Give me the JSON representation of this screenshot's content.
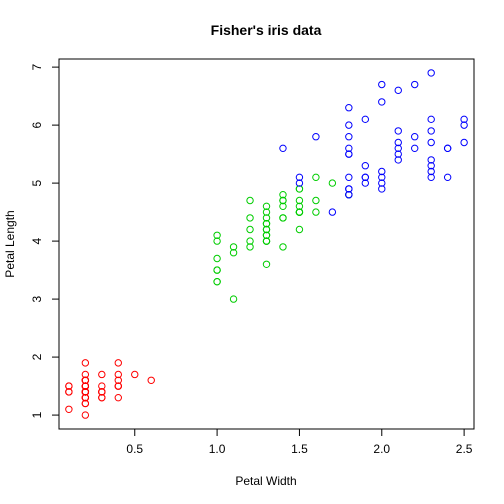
{
  "chart_data": {
    "type": "scatter",
    "title": "Fisher's iris data",
    "xlabel": "Petal Width",
    "ylabel": "Petal Length",
    "xlim": [
      0.04,
      2.56
    ],
    "ylim": [
      0.76,
      7.14
    ],
    "xticks": [
      0.5,
      1.0,
      1.5,
      2.0,
      2.5
    ],
    "xtick_labels": [
      "0.5",
      "1.0",
      "1.5",
      "2.0",
      "2.5"
    ],
    "yticks": [
      1,
      2,
      3,
      4,
      5,
      6,
      7
    ],
    "ytick_labels": [
      "1",
      "2",
      "3",
      "4",
      "5",
      "6",
      "7"
    ],
    "grid": false,
    "series": [
      {
        "color": "#ff0000",
        "points": [
          [
            0.2,
            1.4
          ],
          [
            0.2,
            1.4
          ],
          [
            0.2,
            1.3
          ],
          [
            0.2,
            1.5
          ],
          [
            0.2,
            1.4
          ],
          [
            0.4,
            1.7
          ],
          [
            0.3,
            1.4
          ],
          [
            0.2,
            1.5
          ],
          [
            0.2,
            1.4
          ],
          [
            0.1,
            1.5
          ],
          [
            0.2,
            1.5
          ],
          [
            0.2,
            1.6
          ],
          [
            0.1,
            1.4
          ],
          [
            0.1,
            1.1
          ],
          [
            0.2,
            1.2
          ],
          [
            0.4,
            1.5
          ],
          [
            0.4,
            1.3
          ],
          [
            0.3,
            1.4
          ],
          [
            0.3,
            1.7
          ],
          [
            0.3,
            1.5
          ],
          [
            0.2,
            1.7
          ],
          [
            0.4,
            1.5
          ],
          [
            0.2,
            1.0
          ],
          [
            0.5,
            1.7
          ],
          [
            0.2,
            1.9
          ],
          [
            0.2,
            1.6
          ],
          [
            0.4,
            1.6
          ],
          [
            0.2,
            1.5
          ],
          [
            0.2,
            1.4
          ],
          [
            0.2,
            1.6
          ],
          [
            0.2,
            1.6
          ],
          [
            0.4,
            1.5
          ],
          [
            0.1,
            1.5
          ],
          [
            0.2,
            1.4
          ],
          [
            0.2,
            1.5
          ],
          [
            0.2,
            1.2
          ],
          [
            0.2,
            1.3
          ],
          [
            0.1,
            1.4
          ],
          [
            0.2,
            1.3
          ],
          [
            0.2,
            1.5
          ],
          [
            0.3,
            1.3
          ],
          [
            0.3,
            1.3
          ],
          [
            0.2,
            1.3
          ],
          [
            0.6,
            1.6
          ],
          [
            0.4,
            1.9
          ],
          [
            0.3,
            1.4
          ],
          [
            0.2,
            1.6
          ],
          [
            0.2,
            1.4
          ],
          [
            0.2,
            1.5
          ],
          [
            0.2,
            1.4
          ]
        ]
      },
      {
        "color": "#00cd00",
        "points": [
          [
            1.4,
            4.7
          ],
          [
            1.5,
            4.5
          ],
          [
            1.5,
            4.9
          ],
          [
            1.3,
            4.0
          ],
          [
            1.5,
            4.6
          ],
          [
            1.3,
            4.5
          ],
          [
            1.6,
            4.7
          ],
          [
            1.0,
            3.3
          ],
          [
            1.3,
            4.6
          ],
          [
            1.4,
            3.9
          ],
          [
            1.0,
            3.5
          ],
          [
            1.5,
            4.2
          ],
          [
            1.0,
            4.0
          ],
          [
            1.4,
            4.7
          ],
          [
            1.3,
            3.6
          ],
          [
            1.4,
            4.4
          ],
          [
            1.5,
            4.5
          ],
          [
            1.0,
            4.1
          ],
          [
            1.5,
            4.5
          ],
          [
            1.1,
            3.9
          ],
          [
            1.8,
            4.8
          ],
          [
            1.3,
            4.0
          ],
          [
            1.5,
            4.9
          ],
          [
            1.2,
            4.7
          ],
          [
            1.3,
            4.3
          ],
          [
            1.4,
            4.4
          ],
          [
            1.4,
            4.8
          ],
          [
            1.7,
            5.0
          ],
          [
            1.5,
            4.5
          ],
          [
            1.0,
            3.5
          ],
          [
            1.1,
            3.8
          ],
          [
            1.0,
            3.7
          ],
          [
            1.2,
            3.9
          ],
          [
            1.6,
            5.1
          ],
          [
            1.5,
            4.5
          ],
          [
            1.6,
            4.5
          ],
          [
            1.5,
            4.7
          ],
          [
            1.3,
            4.4
          ],
          [
            1.3,
            4.1
          ],
          [
            1.3,
            4.0
          ],
          [
            1.2,
            4.4
          ],
          [
            1.4,
            4.6
          ],
          [
            1.2,
            4.0
          ],
          [
            1.0,
            3.3
          ],
          [
            1.3,
            4.2
          ],
          [
            1.2,
            4.2
          ],
          [
            1.3,
            4.2
          ],
          [
            1.3,
            4.3
          ],
          [
            1.1,
            3.0
          ],
          [
            1.3,
            4.1
          ]
        ]
      },
      {
        "color": "#0000ff",
        "points": [
          [
            2.5,
            6.0
          ],
          [
            1.9,
            5.1
          ],
          [
            2.1,
            5.9
          ],
          [
            1.8,
            5.6
          ],
          [
            2.2,
            5.8
          ],
          [
            2.1,
            6.6
          ],
          [
            1.7,
            4.5
          ],
          [
            1.8,
            6.3
          ],
          [
            1.8,
            5.8
          ],
          [
            2.5,
            6.1
          ],
          [
            2.0,
            5.1
          ],
          [
            1.9,
            5.3
          ],
          [
            2.1,
            5.5
          ],
          [
            2.0,
            5.0
          ],
          [
            2.4,
            5.1
          ],
          [
            2.3,
            5.3
          ],
          [
            1.8,
            5.5
          ],
          [
            2.2,
            6.7
          ],
          [
            2.3,
            6.9
          ],
          [
            1.5,
            5.0
          ],
          [
            2.3,
            5.7
          ],
          [
            2.0,
            4.9
          ],
          [
            2.0,
            6.7
          ],
          [
            1.8,
            4.9
          ],
          [
            2.1,
            5.7
          ],
          [
            1.8,
            6.0
          ],
          [
            1.8,
            4.8
          ],
          [
            1.8,
            4.9
          ],
          [
            2.1,
            5.6
          ],
          [
            1.6,
            5.8
          ],
          [
            1.9,
            6.1
          ],
          [
            2.0,
            6.4
          ],
          [
            2.2,
            5.6
          ],
          [
            1.5,
            5.1
          ],
          [
            1.4,
            5.6
          ],
          [
            2.3,
            6.1
          ],
          [
            2.4,
            5.6
          ],
          [
            1.8,
            5.5
          ],
          [
            1.8,
            4.8
          ],
          [
            2.1,
            5.4
          ],
          [
            2.4,
            5.6
          ],
          [
            2.3,
            5.1
          ],
          [
            1.9,
            5.1
          ],
          [
            2.3,
            5.9
          ],
          [
            2.5,
            5.7
          ],
          [
            2.3,
            5.2
          ],
          [
            1.9,
            5.0
          ],
          [
            2.0,
            5.2
          ],
          [
            2.3,
            5.4
          ],
          [
            1.8,
            5.1
          ]
        ]
      }
    ]
  }
}
